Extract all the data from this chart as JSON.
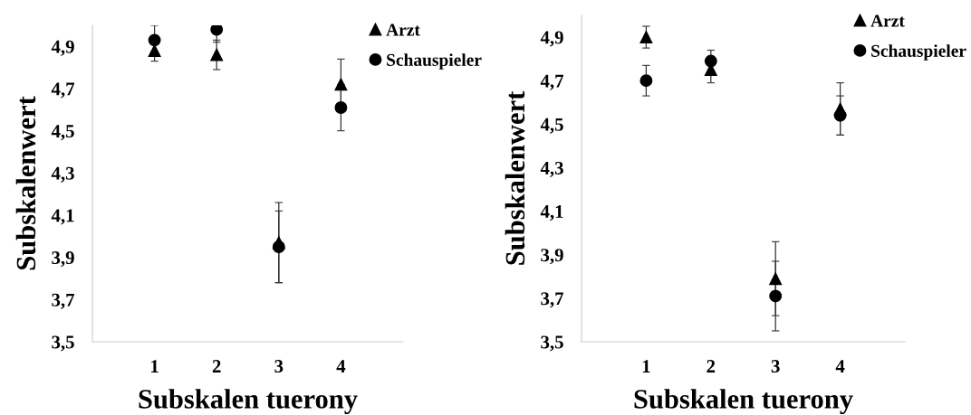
{
  "chart_data": [
    {
      "type": "scatter",
      "xlabel": "Subskalen tuerony",
      "ylabel": "Subskalenwert",
      "categories": [
        "1",
        "2",
        "3",
        "4"
      ],
      "ylim": [
        3.5,
        5.0
      ],
      "yticks": [
        {
          "value": 3.5,
          "label": "3,5"
        },
        {
          "value": 3.7,
          "label": "3,7"
        },
        {
          "value": 3.9,
          "label": "3,9"
        },
        {
          "value": 4.1,
          "label": "4,1"
        },
        {
          "value": 4.3,
          "label": "4,3"
        },
        {
          "value": 4.5,
          "label": "4,5"
        },
        {
          "value": 4.7,
          "label": "4,7"
        },
        {
          "value": 4.9,
          "label": "4,9"
        }
      ],
      "legend": "top right",
      "grid": false,
      "series": [
        {
          "name": "Arzt",
          "color": "#000000",
          "marker": "triangle",
          "values": [
            4.88,
            4.86,
            3.97,
            4.72
          ],
          "errors": [
            0.05,
            0.07,
            0.19,
            0.12
          ]
        },
        {
          "name": "Schauspieler",
          "color": "#000000",
          "marker": "circle",
          "values": [
            4.93,
            4.98,
            3.95,
            4.61
          ],
          "errors": [
            0.07,
            [
              4.92,
              4.98
            ],
            0.17,
            0.11
          ]
        }
      ]
    },
    {
      "type": "scatter",
      "xlabel": "Subskalen tuerony",
      "ylabel": "Subskalenwert",
      "categories": [
        "1",
        "2",
        "3",
        "4"
      ],
      "ylim": [
        3.5,
        5.0
      ],
      "yticks": [
        {
          "value": 3.5,
          "label": "3,5"
        },
        {
          "value": 3.7,
          "label": "3,7"
        },
        {
          "value": 3.9,
          "label": "3,9"
        },
        {
          "value": 4.1,
          "label": "4,1"
        },
        {
          "value": 4.3,
          "label": "4,3"
        },
        {
          "value": 4.5,
          "label": "4,5"
        },
        {
          "value": 4.7,
          "label": "4,7"
        },
        {
          "value": 4.9,
          "label": "4,9"
        }
      ],
      "legend": "top right",
      "grid": false,
      "series": [
        {
          "name": "Arzt",
          "color": "#000000",
          "marker": "triangle",
          "values": [
            4.9,
            4.75,
            3.79,
            4.57
          ],
          "errors": [
            0.05,
            0.06,
            0.17,
            0.12
          ]
        },
        {
          "name": "Schauspieler",
          "color": "#000000",
          "marker": "circle",
          "values": [
            4.7,
            4.79,
            3.71,
            4.54
          ],
          "errors": [
            0.07,
            0.05,
            0.16,
            0.09
          ]
        }
      ]
    }
  ]
}
